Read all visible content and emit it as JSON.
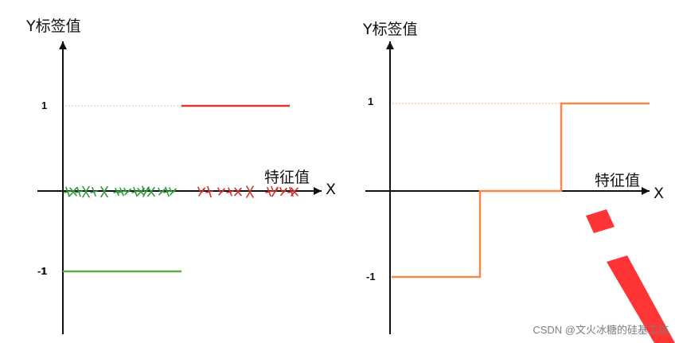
{
  "left_panel": {
    "y_axis_label": "Y标签值",
    "x_axis_label": "特征值",
    "x_letter": "X",
    "tick_pos": "1",
    "tick_neg": "-1",
    "tick_neg_overlap": "1",
    "colors": {
      "upper_line": "#d03b35",
      "lower_line": "#5fae45",
      "dotted": "#c9c9a0",
      "green_marks": "#2f9a3c",
      "red_marks": "#d2302c"
    }
  },
  "right_panel": {
    "y_axis_label": "Y标签值",
    "x_axis_label": "特征值",
    "x_letter": "X",
    "tick_pos": "1",
    "tick_neg": "-1",
    "colors": {
      "step": "#f08a4b",
      "dotted": "#f3b18a"
    }
  },
  "watermark": {
    "text": "CSDN @文火冰糖的硅基工坊",
    "accent": "#ff2b2b"
  }
}
